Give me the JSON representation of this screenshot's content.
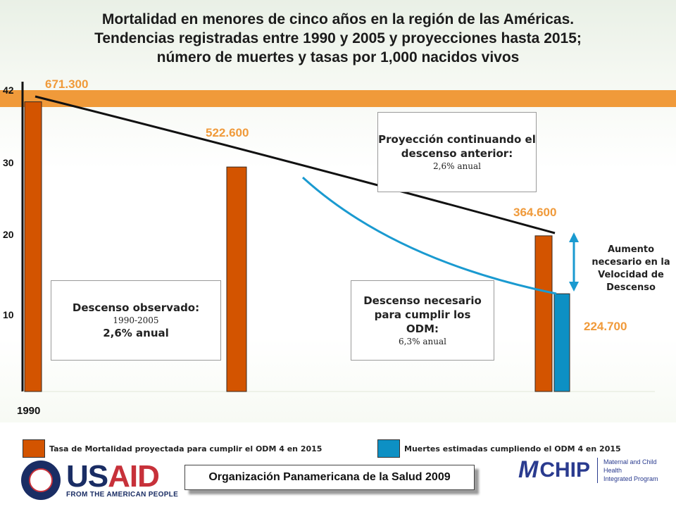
{
  "title_lines": [
    "Mortalidad en menores de cinco años en la región de las Américas.",
    "Tendencias registradas entre 1990 y 2005 y proyecciones hasta 2015;",
    "número de muertes y tasas por 1,000 nacidos vivos"
  ],
  "chart_data": {
    "type": "bar",
    "y_ticks": [
      "10",
      "20",
      "30",
      "42"
    ],
    "x_tick_label": "1990",
    "ylim": [
      0,
      42
    ],
    "bars": [
      {
        "label": "671.300",
        "value": 40,
        "color": "#d35400"
      },
      {
        "label": "522.600",
        "value": 31,
        "color": "#d35400"
      },
      {
        "label": "364.600",
        "value": 21.5,
        "color": "#d35400"
      },
      {
        "label": "224.700",
        "value": 13.5,
        "color": "#0d90c4"
      }
    ],
    "trend_line": [
      [
        1990,
        40.8
      ],
      [
        2000,
        30.8
      ],
      [
        2015,
        21.8
      ]
    ],
    "odm_line": [
      [
        2002,
        28.5
      ],
      [
        2015,
        13.5
      ]
    ],
    "colors": {
      "orange": "#d35400",
      "blue": "#0d90c4",
      "band": "#f09a3a"
    },
    "legend": [
      {
        "label": "Tasa de Mortalidad proyectada para cumplir el ODM 4 en 2015",
        "color": "#d35400"
      },
      {
        "label": "Muertes estimadas cumpliendo el ODM 4 en 2015",
        "color": "#0d90c4"
      }
    ]
  },
  "box_proyeccion": {
    "bold": "Proyección continuando el descenso anterior:",
    "sub": "2,6% anual"
  },
  "box_observado": {
    "bold": "Descenso observado:",
    "sub": "1990-2005",
    "rate": "2,6% anual"
  },
  "box_necesario": {
    "bold": "Descenso necesario para cumplir los ODM:",
    "sub": "6,3% anual"
  },
  "side_note": "Aumento necesario en la Velocidad de Descenso",
  "usaid": {
    "word_u": "US",
    "word_a": "AID",
    "tagline": "FROM THE AMERICAN PEOPLE"
  },
  "footer": "Organización Panamericana de la Salud 2009",
  "chip": {
    "mark": "M",
    "word": "CHIP",
    "sub1": "Maternal and Child Health",
    "sub2": "Integrated Program"
  }
}
